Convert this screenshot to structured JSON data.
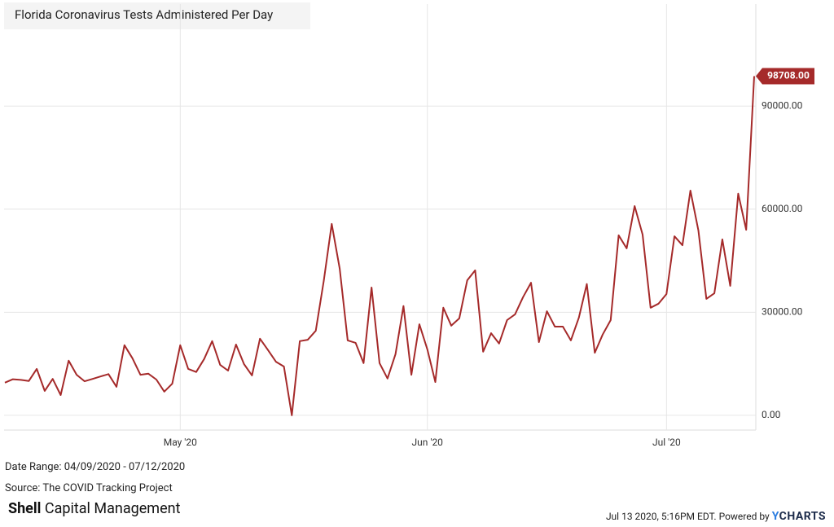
{
  "chart_data": {
    "type": "line",
    "title": "Florida Coronavirus Tests Administered Per Day",
    "date_range": "Date Range: 04/09/2020 - 07/12/2020",
    "source": "Source: The COVID Tracking Project",
    "brand": {
      "bold": "Shell",
      "rest": "Capital Management"
    },
    "timestamp": "Jul 13 2020, 5:16PM EDT. Powered by",
    "logo": "YCHARTS",
    "x": [
      "2020-04-09",
      "2020-04-10",
      "2020-04-11",
      "2020-04-12",
      "2020-04-13",
      "2020-04-14",
      "2020-04-15",
      "2020-04-16",
      "2020-04-17",
      "2020-04-18",
      "2020-04-19",
      "2020-04-20",
      "2020-04-21",
      "2020-04-22",
      "2020-04-23",
      "2020-04-24",
      "2020-04-25",
      "2020-04-26",
      "2020-04-27",
      "2020-04-28",
      "2020-04-29",
      "2020-04-30",
      "2020-05-01",
      "2020-05-02",
      "2020-05-03",
      "2020-05-04",
      "2020-05-05",
      "2020-05-06",
      "2020-05-07",
      "2020-05-08",
      "2020-05-09",
      "2020-05-10",
      "2020-05-11",
      "2020-05-12",
      "2020-05-13",
      "2020-05-14",
      "2020-05-15",
      "2020-05-16",
      "2020-05-17",
      "2020-05-18",
      "2020-05-19",
      "2020-05-20",
      "2020-05-21",
      "2020-05-22",
      "2020-05-23",
      "2020-05-24",
      "2020-05-25",
      "2020-05-26",
      "2020-05-27",
      "2020-05-28",
      "2020-05-29",
      "2020-05-30",
      "2020-05-31",
      "2020-06-01",
      "2020-06-02",
      "2020-06-03",
      "2020-06-04",
      "2020-06-05",
      "2020-06-06",
      "2020-06-07",
      "2020-06-08",
      "2020-06-09",
      "2020-06-10",
      "2020-06-11",
      "2020-06-12",
      "2020-06-13",
      "2020-06-14",
      "2020-06-15",
      "2020-06-16",
      "2020-06-17",
      "2020-06-18",
      "2020-06-19",
      "2020-06-20",
      "2020-06-21",
      "2020-06-22",
      "2020-06-23",
      "2020-06-24",
      "2020-06-25",
      "2020-06-26",
      "2020-06-27",
      "2020-06-28",
      "2020-06-29",
      "2020-06-30",
      "2020-07-01",
      "2020-07-02",
      "2020-07-03",
      "2020-07-04",
      "2020-07-05",
      "2020-07-06",
      "2020-07-07",
      "2020-07-08",
      "2020-07-09",
      "2020-07-10",
      "2020-07-11",
      "2020-07-12"
    ],
    "series": [
      {
        "name": "Florida Coronavirus Tests Administered Per Day",
        "color": "#a52a2a",
        "values": [
          9500,
          10500,
          10300,
          10000,
          13500,
          7100,
          10600,
          5900,
          15900,
          11800,
          9900,
          10600,
          11300,
          12000,
          8300,
          20400,
          16600,
          11800,
          12100,
          10400,
          6900,
          9200,
          20400,
          13500,
          12600,
          16400,
          21600,
          14700,
          13000,
          20600,
          14900,
          11600,
          22300,
          19000,
          15600,
          14200,
          0,
          21600,
          22000,
          24600,
          39100,
          55700,
          42700,
          21800,
          21100,
          15200,
          37200,
          15200,
          10700,
          17800,
          31800,
          11800,
          26500,
          19200,
          9700,
          31300,
          26100,
          28200,
          39300,
          42200,
          18500,
          23900,
          20900,
          27700,
          29400,
          34400,
          38600,
          21300,
          30300,
          25800,
          25800,
          21800,
          28400,
          38200,
          18200,
          23500,
          27700,
          52400,
          48600,
          60900,
          52600,
          31300,
          32500,
          35300,
          52100,
          49500,
          65400,
          53800,
          33900,
          35500,
          51200,
          37700,
          64500,
          54000,
          98708
        ],
        "value_labels": [
          null,
          null,
          null,
          null,
          null,
          null,
          null,
          null,
          null,
          null,
          null,
          null,
          null,
          null,
          null,
          null,
          null,
          null,
          null,
          null,
          null,
          null,
          null,
          null,
          null,
          null,
          null,
          null,
          null,
          null,
          null,
          null,
          null,
          null,
          null,
          null,
          null,
          null,
          null,
          null,
          null,
          null,
          null,
          null,
          null,
          null,
          null,
          null,
          null,
          null,
          null,
          null,
          null,
          null,
          null,
          null,
          null,
          null,
          null,
          null,
          null,
          null,
          null,
          null,
          null,
          null,
          null,
          null,
          null,
          null,
          null,
          null,
          null,
          null,
          null,
          null,
          null,
          null,
          null,
          null,
          null,
          null,
          null,
          null,
          null,
          null,
          null,
          null,
          null,
          null,
          null,
          null,
          null,
          null,
          "98708.00"
        ]
      }
    ],
    "xlim": [
      "2020-04-09",
      "2020-07-12"
    ],
    "xticks": [
      {
        "value": "2020-05-01",
        "label": "May '20"
      },
      {
        "value": "2020-06-01",
        "label": "Jun '20"
      },
      {
        "value": "2020-07-01",
        "label": "Jul '20"
      }
    ],
    "ylim": [
      -4300,
      119700
    ],
    "yticks": [
      {
        "value": 0,
        "label": "0.00"
      },
      {
        "value": 30000,
        "label": "30000.00"
      },
      {
        "value": 60000,
        "label": "60000.00"
      },
      {
        "value": 90000,
        "label": "90000.00"
      }
    ],
    "grid": true
  }
}
